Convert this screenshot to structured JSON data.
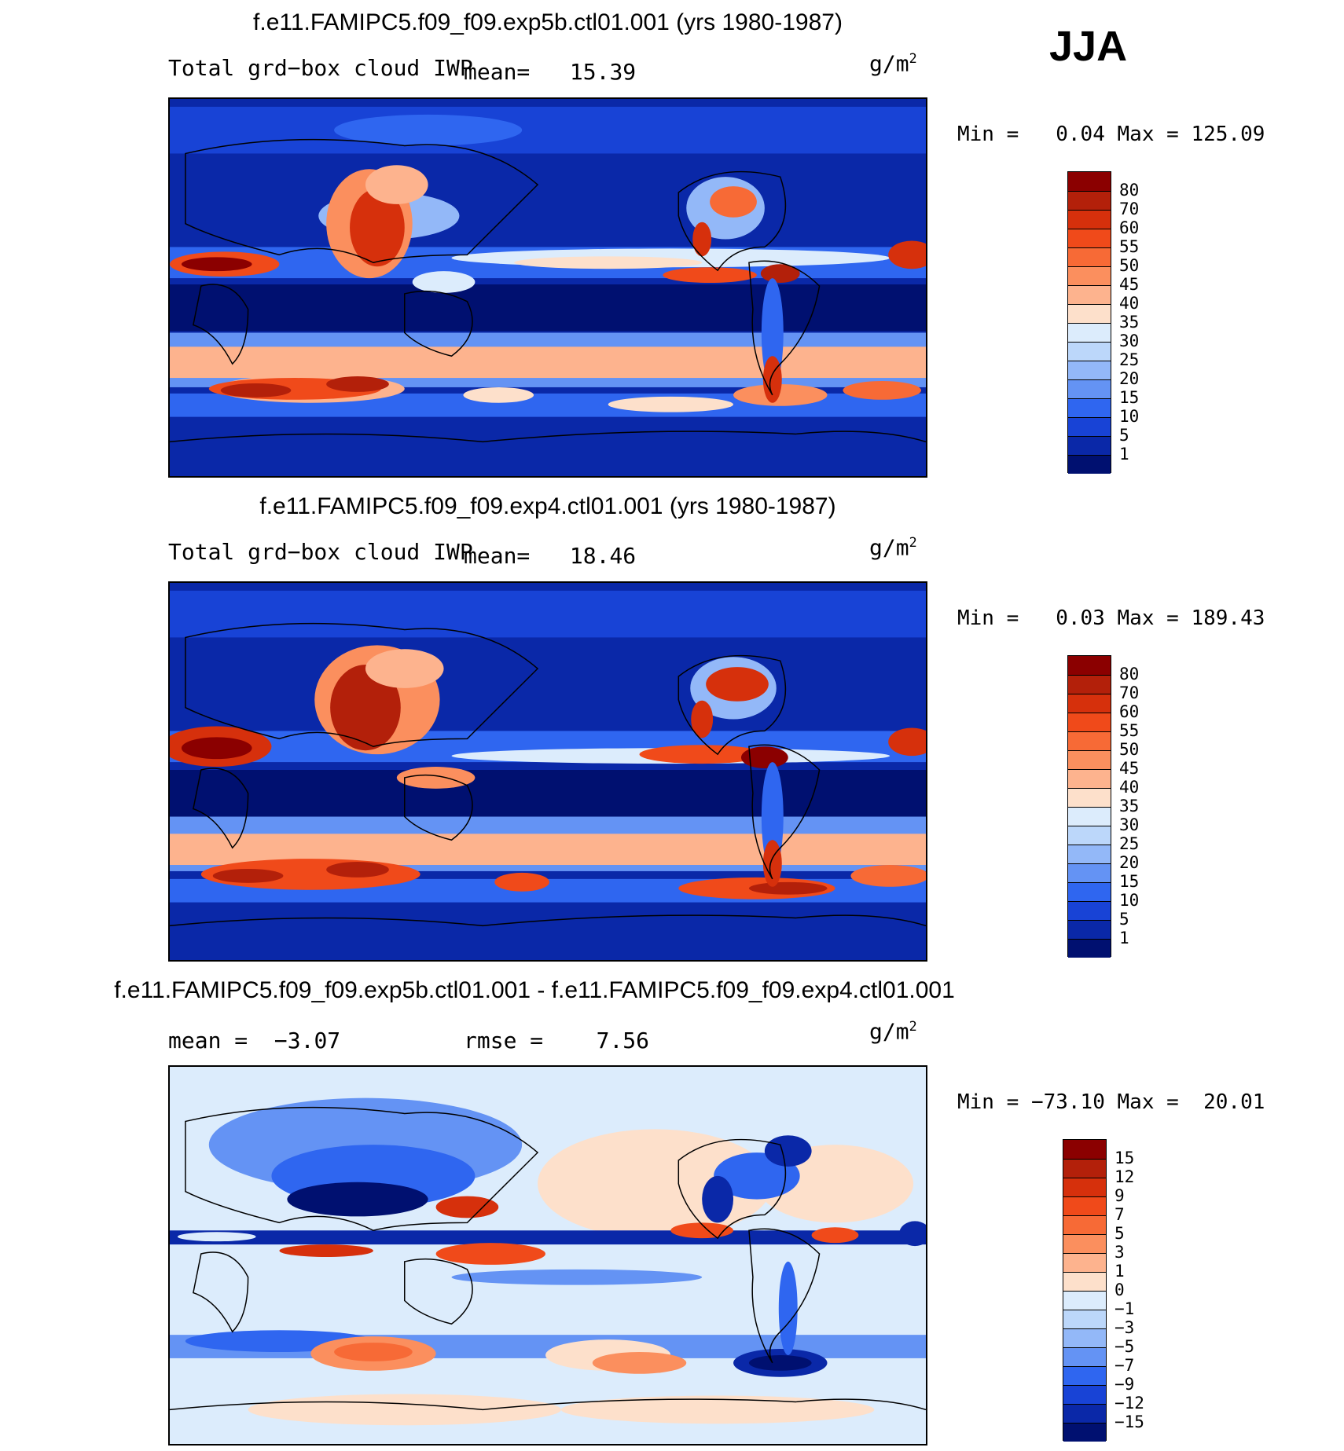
{
  "season": "JJA",
  "units": "g/m",
  "units_exp": "2",
  "panels": [
    {
      "title": "f.e11.FAMIPC5.f09_f09.exp5b.ctl01.001 (yrs 1980-1987)",
      "variable": "Total grd−box cloud IWP",
      "mean_label": "mean=",
      "mean_value": "15.39",
      "min_label": "Min =",
      "min_value": "0.04",
      "max_label": "Max =",
      "max_value": "125.09"
    },
    {
      "title": "f.e11.FAMIPC5.f09_f09.exp4.ctl01.001 (yrs 1980-1987)",
      "variable": "Total grd−box cloud IWP",
      "mean_label": "mean=",
      "mean_value": "18.46",
      "min_label": "Min =",
      "min_value": "0.03",
      "max_label": "Max =",
      "max_value": "189.43"
    },
    {
      "title": "f.e11.FAMIPC5.f09_f09.exp5b.ctl01.001 - f.e11.FAMIPC5.f09_f09.exp4.ctl01.001",
      "mean_label": "mean =",
      "mean_value": "−3.07",
      "rmse_label": "rmse =",
      "rmse_value": "7.56",
      "min_label": "Min =",
      "min_value": "−73.10",
      "max_label": "Max =",
      "max_value": "20.01"
    }
  ],
  "colorbars": {
    "abs": {
      "labels": [
        "80",
        "70",
        "60",
        "55",
        "50",
        "45",
        "40",
        "35",
        "30",
        "25",
        "20",
        "15",
        "10",
        "5",
        "1"
      ],
      "colors": [
        "#8b0000",
        "#b3200a",
        "#d6300c",
        "#f04a1a",
        "#f76a36",
        "#fb8f5e",
        "#fdb38e",
        "#fde0cb",
        "#dcecfc",
        "#bcd7fa",
        "#93b8f8",
        "#6493f4",
        "#2f66f0",
        "#1843d6",
        "#0a28a8",
        "#001070"
      ]
    },
    "diff": {
      "labels": [
        "15",
        "12",
        "9",
        "7",
        "5",
        "3",
        "1",
        "0",
        "−1",
        "−3",
        "−5",
        "−7",
        "−9",
        "−12",
        "−15"
      ],
      "colors": [
        "#8b0000",
        "#b3200a",
        "#d6300c",
        "#f04a1a",
        "#f76a36",
        "#fb8f5e",
        "#fdb38e",
        "#fde0cb",
        "#dcecfc",
        "#bcd7fa",
        "#93b8f8",
        "#6493f4",
        "#2f66f0",
        "#1843d6",
        "#0a28a8",
        "#001070"
      ]
    }
  }
}
